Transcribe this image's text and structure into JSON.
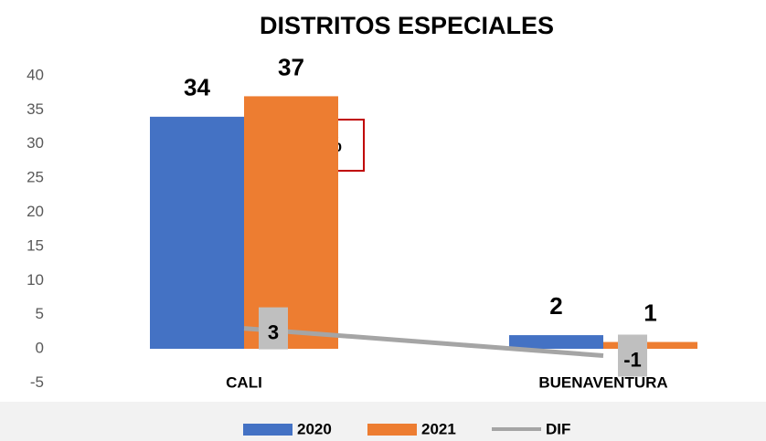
{
  "chart_data": {
    "type": "bar",
    "title": "DISTRITOS ESPECIALES",
    "categories": [
      "CALI",
      "BUENAVENTURA"
    ],
    "series": [
      {
        "name": "2020",
        "color": "#4472c4",
        "values": [
          34,
          2
        ]
      },
      {
        "name": "2021",
        "color": "#ed7d31",
        "values": [
          37,
          1
        ]
      },
      {
        "name": "DIF",
        "type": "line",
        "color": "#a5a5a5",
        "values": [
          3,
          -1
        ]
      }
    ],
    "annotations": [
      "8%"
    ],
    "ylim": [
      -5,
      40
    ],
    "yticks": [
      -5,
      0,
      5,
      10,
      15,
      20,
      25,
      30,
      35,
      40
    ],
    "grid": false,
    "legend": "bottom"
  }
}
